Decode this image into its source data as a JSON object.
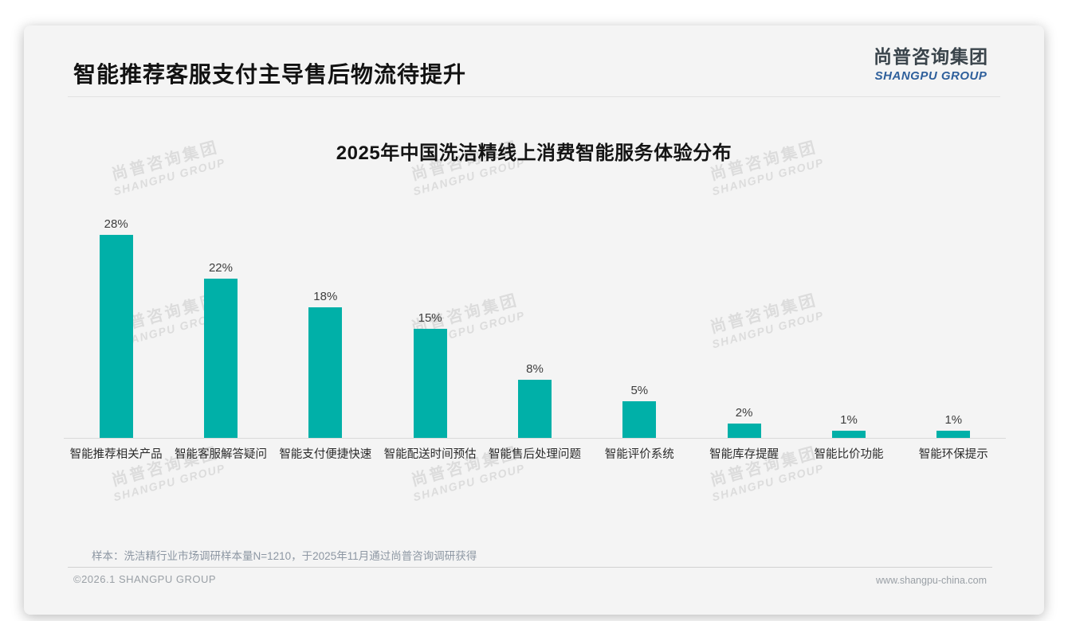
{
  "header": {
    "title": "智能推荐客服支付主导售后物流待提升"
  },
  "logo": {
    "chinese": "尚普咨询集团",
    "english": "SHANGPU GROUP",
    "chinese_color": "#3a444b",
    "english_color": "#2e5f9b"
  },
  "watermark": {
    "line1": "尚普咨询集团",
    "line2": "SHANGPU GROUP"
  },
  "chart_data": {
    "type": "bar",
    "title": "2025年中国洗洁精线上消费智能服务体验分布",
    "categories": [
      "智能推荐相关产品",
      "智能客服解答疑问",
      "智能支付便捷快速",
      "智能配送时间预估",
      "智能售后处理问题",
      "智能评价系统",
      "智能库存提醒",
      "智能比价功能",
      "智能环保提示"
    ],
    "values": [
      28,
      22,
      18,
      15,
      8,
      5,
      2,
      1,
      1
    ],
    "value_labels": [
      "28%",
      "22%",
      "18%",
      "15%",
      "8%",
      "5%",
      "2%",
      "1%",
      "1%"
    ],
    "unit": "%",
    "bar_color": "#00b0a8",
    "xlabel": "",
    "ylabel": "",
    "ylim": [
      0,
      30
    ],
    "grid": false,
    "legend": false
  },
  "footer": {
    "note": "样本：洗洁精行业市场调研样本量N=1210，于2025年11月通过尚普咨询调研获得",
    "copyright": "©2026.1 SHANGPU GROUP",
    "website": "www.shangpu-china.com"
  }
}
